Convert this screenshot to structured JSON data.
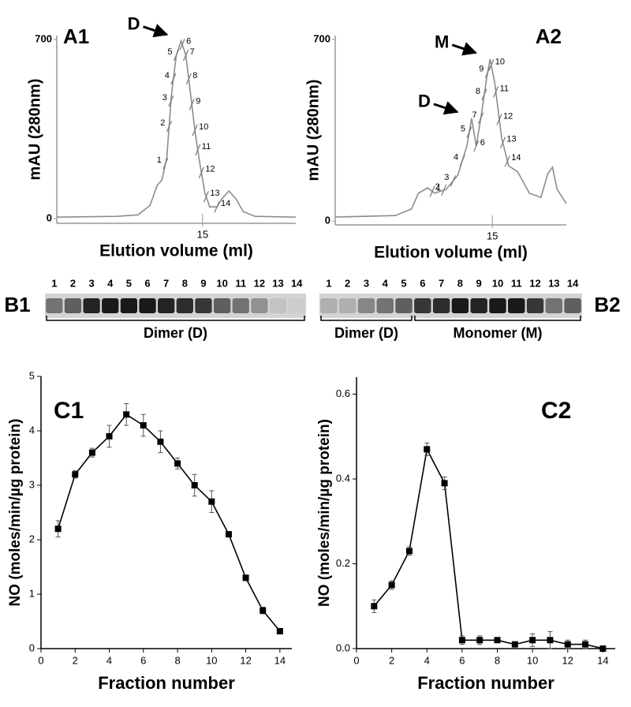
{
  "chart_data": [
    {
      "type": "chromatogram",
      "panel_label": "A1",
      "ylabel": "mAU (280nm)",
      "xlabel": "Elution volume (ml)",
      "color": "#8c8c8c",
      "x": [
        8.9,
        11.4,
        12.3,
        12.8,
        13.1,
        13.3,
        13.5,
        13.7,
        13.9,
        14.1,
        14.3,
        14.5,
        14.7,
        14.9,
        15.1,
        15.3,
        15.6,
        15.8,
        16.1,
        16.4,
        16.7,
        17.2,
        18.9
      ],
      "values": [
        6,
        9,
        15,
        52,
        130,
        151,
        237,
        484,
        638,
        694,
        638,
        484,
        330,
        207,
        99,
        46,
        46,
        77,
        108,
        77,
        28,
        9,
        6
      ],
      "xlim": [
        8.9,
        18.9
      ],
      "ylim": [
        -18,
        715
      ],
      "xticks": [
        15
      ],
      "yticks": [
        0,
        700
      ],
      "fractions": {
        "x": [
          13.45,
          13.6,
          13.68,
          13.78,
          13.9,
          14.15,
          14.3,
          14.42,
          14.55,
          14.68,
          14.8,
          14.95,
          15.15,
          15.6
        ],
        "labels": [
          "1",
          "2",
          "3",
          "4",
          "5",
          "6",
          "7",
          "8",
          "9",
          "10",
          "11",
          "12",
          "13",
          "14"
        ]
      },
      "annotations": [
        {
          "text": "D",
          "x": 14.1,
          "y": 694
        }
      ]
    },
    {
      "type": "chromatogram",
      "panel_label": "A2",
      "ylabel": "mAU (280nm)",
      "xlabel": "Elution volume (ml)",
      "color": "#8c8c8c",
      "x": [
        8.2,
        10.8,
        11.5,
        11.8,
        12.2,
        12.5,
        13.0,
        13.5,
        13.9,
        14.1,
        14.3,
        14.5,
        14.75,
        14.9,
        15.1,
        15.4,
        15.7,
        16.1,
        16.6,
        17.1,
        17.4,
        17.6,
        17.8,
        18.2
      ],
      "values": [
        15,
        21,
        46,
        107,
        128,
        107,
        122,
        176,
        289,
        396,
        289,
        396,
        548,
        624,
        533,
        320,
        213,
        189,
        107,
        91,
        183,
        207,
        122,
        67
      ],
      "xlim": [
        8.2,
        18.2
      ],
      "ylim": [
        -15,
        715
      ],
      "xticks": [
        15
      ],
      "yticks": [
        0,
        700
      ],
      "fractions": {
        "x": [
          12.4,
          12.9,
          13.3,
          13.7,
          14.0,
          14.3,
          14.5,
          14.65,
          14.8,
          14.95,
          15.15,
          15.3,
          15.45,
          15.65
        ],
        "labels": [
          "1",
          "2",
          "3",
          "4",
          "5",
          "6",
          "7",
          "8",
          "9",
          "10",
          "11",
          "12",
          "13",
          "14"
        ]
      },
      "annotations": [
        {
          "text": "M",
          "x": 14.9,
          "y": 624
        },
        {
          "text": "D",
          "x": 14.1,
          "y": 396
        }
      ]
    },
    {
      "type": "gel",
      "panel_label": "B1",
      "lanes": [
        "1",
        "2",
        "3",
        "4",
        "5",
        "6",
        "7",
        "8",
        "9",
        "10",
        "11",
        "12",
        "13",
        "14"
      ],
      "band_intensity": [
        0.5,
        0.6,
        0.9,
        0.95,
        0.95,
        0.95,
        0.9,
        0.85,
        0.8,
        0.6,
        0.5,
        0.35,
        0.1,
        0.05
      ],
      "groups": [
        "Dimer (D)"
      ]
    },
    {
      "type": "gel",
      "panel_label": "B2",
      "lanes": [
        "1",
        "2",
        "3",
        "4",
        "5",
        "6",
        "7",
        "8",
        "9",
        "10",
        "11",
        "12",
        "13",
        "14"
      ],
      "band_intensity": [
        0.2,
        0.2,
        0.4,
        0.5,
        0.6,
        0.8,
        0.85,
        0.95,
        0.9,
        0.95,
        0.95,
        0.8,
        0.5,
        0.6
      ],
      "groups": [
        "Dimer (D)",
        "Monomer (M)"
      ]
    },
    {
      "type": "line",
      "panel_label": "C1",
      "ylabel": "NO (moles/min/µg protein)",
      "xlabel": "Fraction number",
      "color": "#000000",
      "x": [
        1,
        2,
        3,
        4,
        5,
        6,
        7,
        8,
        9,
        10,
        11,
        12,
        13,
        14
      ],
      "values": [
        2.2,
        3.2,
        3.6,
        3.9,
        4.3,
        4.1,
        3.8,
        3.4,
        3.0,
        2.7,
        2.1,
        1.3,
        0.7,
        0.32
      ],
      "errors": [
        0.15,
        0.07,
        0.08,
        0.2,
        0.2,
        0.2,
        0.2,
        0.1,
        0.2,
        0.2,
        0.05,
        0.05,
        0.06,
        0.03
      ],
      "xlim": [
        0,
        14.7
      ],
      "ylim": [
        0,
        5
      ],
      "xticks": [
        0,
        2,
        4,
        6,
        8,
        10,
        12,
        14
      ],
      "yticks": [
        0,
        1,
        2,
        3,
        4,
        5
      ]
    },
    {
      "type": "line",
      "panel_label": "C2",
      "ylabel": "NO (moles/min/µg protein)",
      "xlabel": "Fraction number",
      "color": "#000000",
      "x": [
        1,
        2,
        3,
        4,
        5,
        6,
        7,
        8,
        9,
        10,
        11,
        12,
        13,
        14
      ],
      "values": [
        0.1,
        0.15,
        0.23,
        0.47,
        0.39,
        0.02,
        0.02,
        0.02,
        0.01,
        0.02,
        0.02,
        0.01,
        0.01,
        0.0
      ],
      "errors": [
        0.015,
        0.01,
        0.01,
        0.015,
        0.015,
        0.01,
        0.01,
        0.005,
        0.005,
        0.015,
        0.02,
        0.01,
        0.01,
        0.005
      ],
      "xlim": [
        0,
        14.7
      ],
      "ylim": [
        0,
        0.64
      ],
      "xticks": [
        0,
        2,
        4,
        6,
        8,
        10,
        12,
        14
      ],
      "yticks": [
        {
          "value": 0,
          "label": "0.0"
        },
        0.2,
        0.4,
        0.6
      ]
    }
  ]
}
